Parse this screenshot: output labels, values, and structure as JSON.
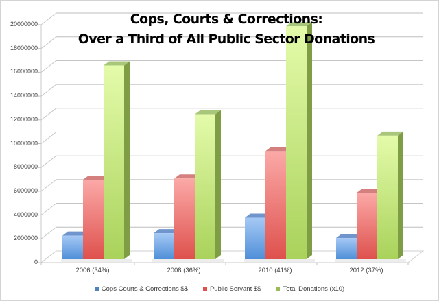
{
  "chart_data": {
    "type": "bar",
    "variant": "3d-clustered-column",
    "title": "Cops, Courts & Corrections: Over a Third of All Public Sector Donations",
    "title_lines": [
      "Cops, Courts & Corrections:",
      "Over a Third of All Public Sector Donations"
    ],
    "xlabel": "",
    "ylabel": "",
    "categories": [
      "2006 (34%)",
      "2008 (36%)",
      "2010 (41%)",
      "2012 (37%)"
    ],
    "series": [
      {
        "name": "Cops Courts & Corrections $$",
        "color": "#4f81bd",
        "values": [
          2100000,
          2300000,
          3600000,
          1900000
        ]
      },
      {
        "name": "Public Servant $$",
        "color": "#e0504d",
        "values": [
          6800000,
          6900000,
          9200000,
          5700000
        ]
      },
      {
        "name": "Total Donations (x10)",
        "color": "#9bbb59",
        "values": [
          16400000,
          12300000,
          19700000,
          10500000
        ]
      }
    ],
    "ylim": [
      0,
      20000000
    ],
    "yticks": [
      "0",
      "2000000",
      "4000000",
      "6000000",
      "8000000",
      "10000000",
      "12000000",
      "14000000",
      "16000000",
      "18000000",
      "20000000"
    ],
    "grid": true,
    "legend_position": "bottom"
  }
}
